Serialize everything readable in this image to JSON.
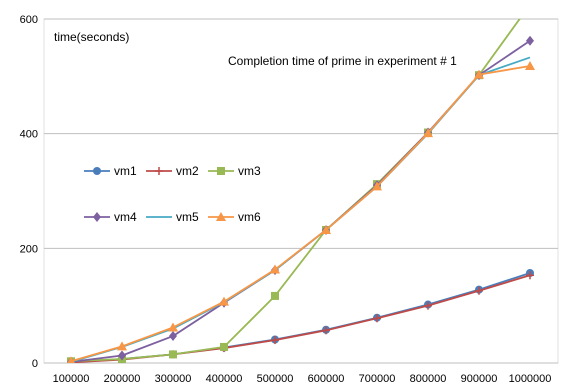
{
  "chart_data": {
    "type": "line",
    "title": "Completion time of prime in experiment # 1",
    "ylabel": "time(seconds)",
    "xlabel": "",
    "x": [
      100000,
      200000,
      300000,
      400000,
      500000,
      600000,
      700000,
      800000,
      900000,
      1000000
    ],
    "ylim": [
      0,
      600
    ],
    "yticks": [
      0,
      200,
      400,
      600
    ],
    "grid": "horizontal",
    "legend_position": "left",
    "series": [
      {
        "name": "vm1",
        "color": "#4A7EBB",
        "marker": "circle",
        "values": [
          2,
          7,
          15,
          27,
          41,
          58,
          79,
          102,
          128,
          157
        ]
      },
      {
        "name": "vm2",
        "color": "#BE4B48",
        "marker": "plus",
        "values": [
          1,
          6,
          15,
          26,
          40,
          57,
          78,
          100,
          126,
          153
        ]
      },
      {
        "name": "vm3",
        "color": "#98B954",
        "marker": "square",
        "values": [
          3,
          7,
          15,
          28,
          117,
          232,
          312,
          402,
          502,
          625
        ]
      },
      {
        "name": "vm4",
        "color": "#7D60A0",
        "marker": "diamond",
        "values": [
          2,
          13,
          47,
          105,
          162,
          232,
          310,
          402,
          502,
          562
        ]
      },
      {
        "name": "vm5",
        "color": "#46AAC5",
        "marker": "none",
        "values": [
          2,
          28,
          60,
          106,
          162,
          232,
          308,
          400,
          502,
          533
        ]
      },
      {
        "name": "vm6",
        "color": "#F79646",
        "marker": "triangle",
        "values": [
          3,
          29,
          62,
          107,
          163,
          232,
          308,
          401,
          503,
          518
        ]
      }
    ]
  }
}
